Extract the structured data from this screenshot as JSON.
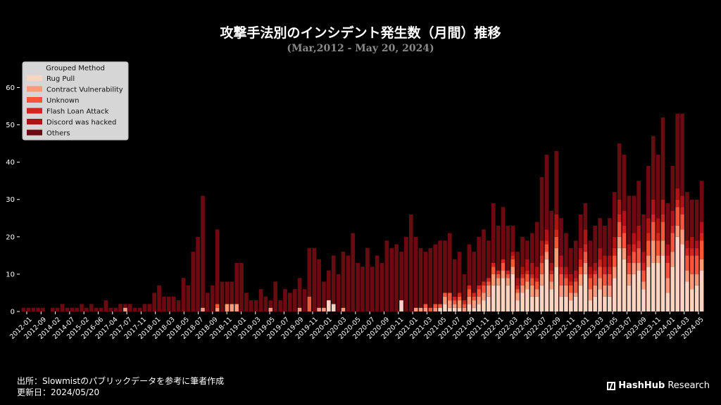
{
  "header": {
    "title": "攻撃手法別のインシデント発生数（月間）推移",
    "subtitle": "(Mar,2012 - May 20, 2024)"
  },
  "footer": {
    "source": "出所：Slowmistのパブリックデータを参考に筆者作成",
    "updated": "更新日：2024/05/20"
  },
  "brand": {
    "bold": "HashHub",
    "rest": " Research"
  },
  "chart_data": {
    "type": "bar",
    "stacked": true,
    "ylim": [
      0,
      68
    ],
    "yticks": [
      0,
      10,
      20,
      30,
      40,
      50,
      60
    ],
    "legend": {
      "title": "Grouped Method",
      "placement": "top-left"
    },
    "colors": {
      "Rug Pull": "#fdd3c1",
      "Contract Vulnerability": "#fc9a7a",
      "Unknown": "#f6553c",
      "Flash Loan Attack": "#d42422",
      "Discord was hacked": "#b11218",
      "Others": "#6b0a10"
    },
    "x_tick_labels": [
      "2012-01",
      "2012-09",
      "2014-02",
      "2014-07",
      "2015-02",
      "2016-06",
      "2017-04",
      "2017-07",
      "2017-11",
      "2018-01",
      "2018-03",
      "2018-05",
      "2018-07",
      "2018-09",
      "2018-11",
      "2019-01",
      "2019-03",
      "2019-05",
      "2019-07",
      "2019-09",
      "2019-11",
      "2020-01",
      "2020-03",
      "2020-05",
      "2020-07",
      "2020-09",
      "2020-11",
      "2021-01",
      "2021-03",
      "2021-05",
      "2021-07",
      "2021-09",
      "2021-11",
      "2022-01",
      "2022-03",
      "2022-05",
      "2022-07",
      "2022-09",
      "2022-11",
      "2023-01",
      "2023-03",
      "2023-05",
      "2023-07",
      "2023-09",
      "2023-11",
      "2024-01",
      "2024-03",
      "2024-05"
    ],
    "series": [
      {
        "name": "Rug Pull",
        "values": [
          0,
          0,
          0,
          0,
          0,
          0,
          0,
          0,
          0,
          0,
          0,
          0,
          0,
          0,
          0,
          0,
          0,
          0,
          0,
          0,
          0,
          0,
          0,
          0,
          0,
          0,
          0,
          0,
          0,
          0,
          0,
          0,
          0,
          0,
          0,
          0,
          0,
          0,
          0,
          0,
          0,
          0,
          0,
          0,
          0,
          0,
          0,
          0,
          0,
          0,
          0,
          0,
          0,
          0,
          0,
          0,
          0,
          0,
          0,
          0,
          0,
          0,
          0,
          3,
          2,
          0,
          0,
          0,
          0,
          0,
          0,
          0,
          0,
          0,
          0,
          0,
          0,
          0,
          3,
          0,
          0,
          0,
          0,
          0,
          0,
          0,
          1,
          2,
          1,
          1,
          1,
          0,
          2,
          1,
          2,
          3,
          4,
          7,
          7,
          9,
          7,
          10,
          3,
          5,
          6,
          4,
          4,
          7,
          14,
          6,
          12,
          4,
          4,
          3,
          4,
          7,
          10,
          3,
          4,
          6,
          4,
          4,
          9,
          17,
          14,
          7,
          10,
          11,
          6,
          12,
          13,
          13,
          15,
          5,
          12,
          20,
          18,
          8,
          6,
          7,
          11
        ]
      },
      {
        "name": "Contract Vulnerability",
        "values": [
          0,
          0,
          0,
          0,
          0,
          0,
          0,
          0,
          0,
          0,
          0,
          0,
          0,
          0,
          0,
          0,
          0,
          0,
          0,
          0,
          0,
          1,
          0,
          0,
          0,
          0,
          0,
          0,
          0,
          0,
          0,
          0,
          0,
          0,
          0,
          0,
          0,
          1,
          0,
          0,
          1,
          0,
          2,
          2,
          2,
          0,
          0,
          0,
          0,
          0,
          0,
          1,
          0,
          0,
          0,
          0,
          0,
          1,
          0,
          0,
          0,
          1,
          1,
          0,
          0,
          0,
          1,
          0,
          0,
          0,
          0,
          0,
          0,
          0,
          0,
          0,
          0,
          0,
          0,
          0,
          0,
          1,
          1,
          1,
          0,
          1,
          0,
          2,
          2,
          1,
          2,
          1,
          2,
          2,
          2,
          2,
          3,
          3,
          2,
          2,
          2,
          2,
          2,
          2,
          2,
          3,
          2,
          3,
          2,
          2,
          5,
          3,
          3,
          2,
          1,
          3,
          3,
          3,
          3,
          3,
          3,
          3,
          3,
          3,
          3,
          3,
          3,
          2,
          2,
          3,
          6,
          2,
          4,
          4,
          4,
          3,
          4,
          3,
          4,
          3,
          3
        ]
      },
      {
        "name": "Unknown",
        "values": [
          0,
          0,
          0,
          0,
          0,
          0,
          0,
          0,
          0,
          0,
          0,
          0,
          0,
          0,
          0,
          0,
          0,
          0,
          0,
          0,
          0,
          0,
          0,
          0,
          0,
          0,
          0,
          0,
          0,
          0,
          0,
          0,
          0,
          0,
          0,
          0,
          0,
          0,
          0,
          0,
          1,
          0,
          0,
          0,
          0,
          0,
          0,
          0,
          0,
          0,
          0,
          0,
          0,
          0,
          0,
          0,
          0,
          0,
          0,
          4,
          0,
          0,
          0,
          0,
          0,
          0,
          0,
          0,
          0,
          0,
          0,
          0,
          0,
          0,
          0,
          0,
          0,
          0,
          0,
          0,
          0,
          0,
          0,
          1,
          1,
          1,
          1,
          1,
          2,
          1,
          1,
          1,
          2,
          1,
          2,
          2,
          1,
          2,
          1,
          2,
          1,
          2,
          1,
          2,
          2,
          2,
          2,
          3,
          2,
          2,
          3,
          3,
          2,
          2,
          3,
          2,
          3,
          3,
          3,
          3,
          3,
          3,
          3,
          4,
          4,
          3,
          3,
          4,
          3,
          4,
          5,
          4,
          5,
          4,
          5,
          5,
          4,
          4,
          5,
          5,
          5
        ]
      },
      {
        "name": "Flash Loan Attack",
        "values": [
          0,
          0,
          0,
          0,
          0,
          0,
          0,
          0,
          0,
          0,
          0,
          0,
          0,
          0,
          0,
          0,
          0,
          0,
          0,
          0,
          0,
          0,
          0,
          0,
          0,
          0,
          0,
          0,
          0,
          0,
          0,
          0,
          0,
          0,
          0,
          0,
          0,
          0,
          0,
          0,
          0,
          0,
          0,
          0,
          0,
          0,
          0,
          0,
          0,
          0,
          0,
          0,
          0,
          0,
          0,
          0,
          0,
          0,
          0,
          0,
          0,
          0,
          0,
          0,
          0,
          0,
          0,
          0,
          0,
          0,
          0,
          0,
          0,
          0,
          0,
          0,
          0,
          0,
          0,
          0,
          0,
          0,
          0,
          0,
          0,
          0,
          0,
          0,
          0,
          1,
          1,
          1,
          1,
          1,
          1,
          1,
          1,
          1,
          1,
          1,
          1,
          1,
          1,
          1,
          1,
          1,
          1,
          2,
          1,
          1,
          2,
          2,
          1,
          1,
          1,
          2,
          2,
          1,
          1,
          2,
          2,
          2,
          2,
          2,
          2,
          2,
          2,
          2,
          2,
          2,
          2,
          2,
          2,
          2,
          2,
          2,
          2,
          2,
          2,
          2,
          2
        ]
      },
      {
        "name": "Discord was hacked",
        "values": [
          0,
          0,
          0,
          0,
          0,
          0,
          0,
          0,
          0,
          0,
          0,
          0,
          0,
          0,
          0,
          0,
          0,
          0,
          0,
          0,
          0,
          0,
          0,
          0,
          0,
          0,
          0,
          0,
          0,
          0,
          0,
          0,
          0,
          0,
          0,
          0,
          0,
          0,
          0,
          0,
          0,
          0,
          0,
          0,
          0,
          0,
          0,
          0,
          0,
          0,
          0,
          0,
          0,
          0,
          0,
          0,
          0,
          0,
          0,
          0,
          0,
          0,
          0,
          0,
          0,
          0,
          0,
          0,
          0,
          0,
          0,
          0,
          0,
          0,
          0,
          0,
          0,
          0,
          0,
          0,
          0,
          0,
          0,
          0,
          0,
          0,
          0,
          0,
          0,
          0,
          0,
          0,
          0,
          0,
          0,
          0,
          0,
          0,
          0,
          0,
          0,
          1,
          2,
          2,
          3,
          3,
          3,
          4,
          3,
          2,
          4,
          3,
          2,
          2,
          2,
          3,
          4,
          2,
          2,
          3,
          3,
          3,
          3,
          4,
          4,
          3,
          3,
          4,
          3,
          4,
          4,
          4,
          4,
          3,
          4,
          3,
          3,
          2,
          3,
          2,
          3
        ]
      },
      {
        "name": "Others",
        "values": [
          1,
          1,
          1,
          1,
          1,
          0,
          1,
          1,
          2,
          1,
          1,
          1,
          2,
          1,
          2,
          1,
          1,
          3,
          1,
          1,
          2,
          1,
          2,
          1,
          1,
          2,
          2,
          5,
          7,
          4,
          4,
          4,
          3,
          9,
          7,
          16,
          20,
          30,
          5,
          7,
          20,
          8,
          6,
          6,
          11,
          13,
          5,
          3,
          3,
          6,
          4,
          2,
          8,
          3,
          6,
          5,
          6,
          8,
          6,
          13,
          17,
          13,
          7,
          8,
          13,
          10,
          15,
          15,
          21,
          13,
          12,
          17,
          12,
          15,
          13,
          19,
          17,
          18,
          13,
          20,
          26,
          19,
          16,
          14,
          16,
          16,
          17,
          14,
          16,
          10,
          11,
          7,
          11,
          11,
          13,
          14,
          10,
          16,
          12,
          14,
          12,
          7,
          7,
          8,
          5,
          8,
          12,
          17,
          20,
          14,
          17,
          10,
          9,
          7,
          8,
          9,
          7,
          7,
          10,
          8,
          8,
          10,
          12,
          15,
          15,
          13,
          10,
          12,
          10,
          14,
          17,
          17,
          22,
          11,
          12,
          20,
          22,
          13,
          10,
          11,
          11
        ]
      }
    ]
  }
}
